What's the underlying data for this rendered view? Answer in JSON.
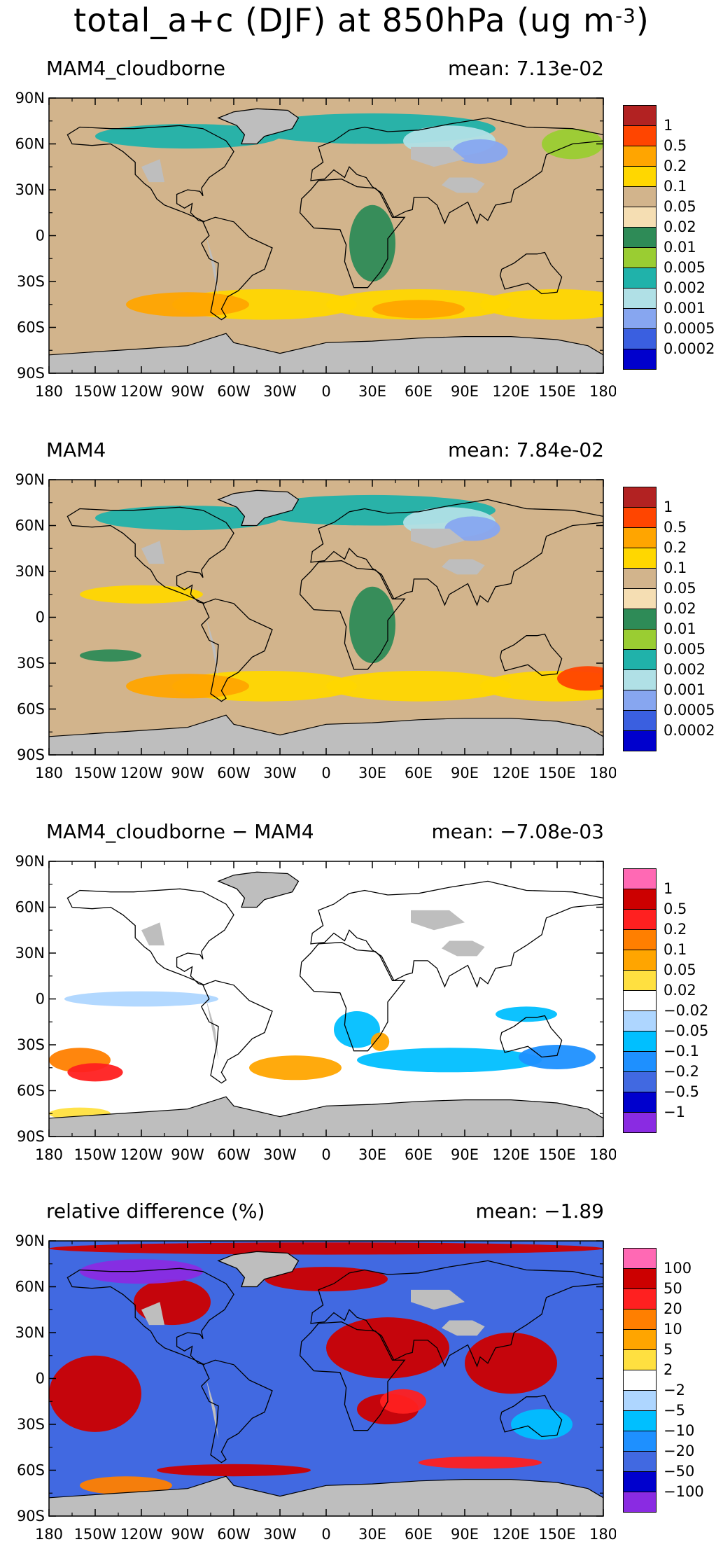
{
  "title": {
    "text": "total_a+c (DJF) at 850hPa (ug m",
    "sup": "-3",
    "close": ")"
  },
  "axes": {
    "lat_ticks": [
      "90N",
      "60N",
      "30N",
      "0",
      "30S",
      "60S",
      "90S"
    ],
    "lon_ticks": [
      "180",
      "150W",
      "120W",
      "90W",
      "60W",
      "30W",
      "0",
      "30E",
      "60E",
      "90E",
      "120E",
      "150E",
      "180"
    ]
  },
  "panels": [
    {
      "name": "MAM4_cloudborne",
      "mean_label": "mean:",
      "mean": "7.13e-02",
      "legend_labels": [
        "1",
        "0.5",
        "0.2",
        "0.1",
        "0.05",
        "0.02",
        "0.01",
        "0.005",
        "0.002",
        "0.001",
        "0.0005",
        "0.0002"
      ],
      "legend_colors": [
        "#b22222",
        "#ff4500",
        "#ffa500",
        "#ffd700",
        "#d2b48c",
        "#f5deb3",
        "#2e8b57",
        "#9acd32",
        "#20b2aa",
        "#b0e0e6",
        "#87a6f0",
        "#3a5fe0",
        "#0000cd"
      ],
      "dominant_color": "#d2b48c"
    },
    {
      "name": "MAM4",
      "mean_label": "mean:",
      "mean": "7.84e-02",
      "legend_labels": [
        "1",
        "0.5",
        "0.2",
        "0.1",
        "0.05",
        "0.02",
        "0.01",
        "0.005",
        "0.002",
        "0.001",
        "0.0005",
        "0.0002"
      ],
      "legend_colors": [
        "#b22222",
        "#ff4500",
        "#ffa500",
        "#ffd700",
        "#d2b48c",
        "#f5deb3",
        "#2e8b57",
        "#9acd32",
        "#20b2aa",
        "#b0e0e6",
        "#87a6f0",
        "#3a5fe0",
        "#0000cd"
      ],
      "dominant_color": "#d2b48c"
    },
    {
      "name": "MAM4_cloudborne − MAM4",
      "mean_label": "mean:",
      "mean": "−7.08e-03",
      "legend_labels": [
        "1",
        "0.5",
        "0.2",
        "0.1",
        "0.05",
        "0.02",
        "−0.02",
        "−0.05",
        "−0.1",
        "−0.2",
        "−0.5",
        "−1"
      ],
      "legend_colors": [
        "#ff69b4",
        "#cc0000",
        "#ff2020",
        "#ff7f00",
        "#ffa500",
        "#ffe040",
        "#ffffff",
        "#aed6ff",
        "#00bfff",
        "#1e90ff",
        "#4169e1",
        "#0000cd",
        "#8a2be2"
      ],
      "dominant_color": "#ffffff"
    },
    {
      "name": "relative difference (%)",
      "mean_label": "mean:",
      "mean": "−1.89",
      "legend_labels": [
        "100",
        "50",
        "20",
        "10",
        "5",
        "2",
        "−2",
        "−5",
        "−10",
        "−20",
        "−50",
        "−100"
      ],
      "legend_colors": [
        "#ff69b4",
        "#cc0000",
        "#ff2020",
        "#ff7f00",
        "#ffa500",
        "#ffe040",
        "#ffffff",
        "#aed6ff",
        "#00bfff",
        "#1e90ff",
        "#4169e1",
        "#0000cd",
        "#8a2be2"
      ],
      "dominant_color": "#4169e1"
    }
  ]
}
